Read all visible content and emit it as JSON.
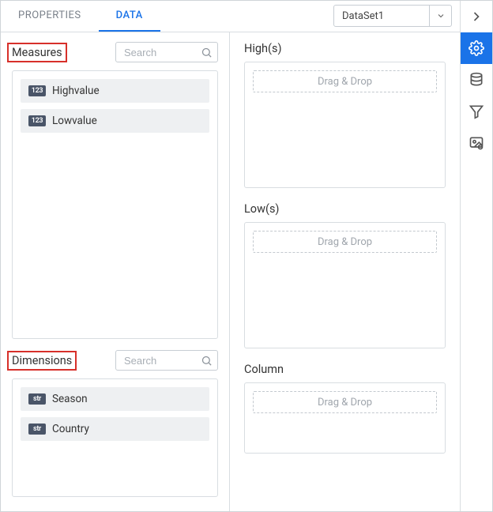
{
  "tabs": {
    "properties": "PROPERTIES",
    "data": "DATA",
    "active": "data"
  },
  "dataset": {
    "selected": "DataSet1"
  },
  "left": {
    "measures": {
      "title": "Measures",
      "search_placeholder": "Search",
      "items": [
        {
          "type": "123",
          "label": "Highvalue"
        },
        {
          "type": "123",
          "label": "Lowvalue"
        }
      ]
    },
    "dimensions": {
      "title": "Dimensions",
      "search_placeholder": "Search",
      "items": [
        {
          "type": "str",
          "label": "Season"
        },
        {
          "type": "str",
          "label": "Country"
        }
      ]
    }
  },
  "right": {
    "zones": [
      {
        "key": "high",
        "label": "High(s)",
        "placeholder": "Drag & Drop",
        "size": "dz-high"
      },
      {
        "key": "low",
        "label": "Low(s)",
        "placeholder": "Drag & Drop",
        "size": "dz-low"
      },
      {
        "key": "column",
        "label": "Column",
        "placeholder": "Drag & Drop",
        "size": "dz-col"
      }
    ]
  },
  "sidebar": {
    "items": [
      {
        "key": "collapse",
        "name": "chevron-right-icon",
        "active": false
      },
      {
        "key": "settings",
        "name": "gear-icon",
        "active": true
      },
      {
        "key": "data",
        "name": "database-icon",
        "active": false
      },
      {
        "key": "filter",
        "name": "filter-icon",
        "active": false
      },
      {
        "key": "image",
        "name": "image-settings-icon",
        "active": false
      }
    ]
  },
  "colors": {
    "accent": "#1a73e8",
    "highlight_border": "#d7302a",
    "border": "#d8dde1",
    "badge_bg": "#4a5568",
    "item_bg": "#eef0f2",
    "placeholder_text": "#a0a6ad"
  }
}
